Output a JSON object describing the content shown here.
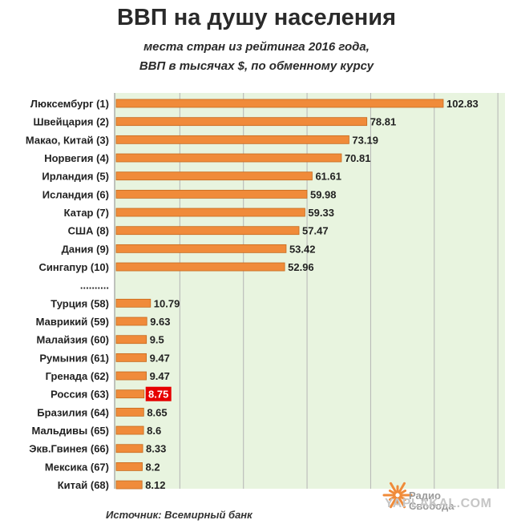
{
  "title": "ВВП на душу населения",
  "subtitle_line1": "места стран из рейтинга 2016 года,",
  "subtitle_line2": "ВВП в тысячах $, по обменному курсу",
  "source": "Источник: Всемирный банк",
  "logo_text_line1": "Радио",
  "logo_text_line2": "Свобода",
  "watermark": "YAPLAKAL.COM",
  "colors": {
    "bar": "#f08b3a",
    "bar_edge": "#c66a1e",
    "plot_bg": "#e8f4df",
    "grid": "#b5b5b5",
    "highlight": "#e60000",
    "logo": "#f08b3a"
  },
  "chart_data": {
    "type": "bar",
    "orientation": "horizontal",
    "categories": [
      "Люксембург (1)",
      "Швейцария (2)",
      "Макао, Китай (3)",
      "Норвегия (4)",
      "Ирландия (5)",
      "Исландия (6)",
      "Катар (7)",
      "США (8)",
      "Дания (9)",
      "Сингапур (10)",
      "..........",
      "Турция (58)",
      "Маврикий (59)",
      "Малайзия (60)",
      "Румыния (61)",
      "Гренада (62)",
      "Россия (63)",
      "Бразилия (64)",
      "Мальдивы (65)",
      "Экв.Гвинея (66)",
      "Мексика (67)",
      "Китай (68)"
    ],
    "values": [
      102.83,
      78.81,
      73.19,
      70.81,
      61.61,
      59.98,
      59.33,
      57.47,
      53.42,
      52.96,
      null,
      10.79,
      9.63,
      9.5,
      9.47,
      9.47,
      8.75,
      8.65,
      8.6,
      8.33,
      8.2,
      8.12
    ],
    "value_labels": [
      "102.83",
      "78.81",
      "73.19",
      "70.81",
      "61.61",
      "59.98",
      "59.33",
      "57.47",
      "53.42",
      "52.96",
      "",
      "10.79",
      "9.63",
      "9.5",
      "9.47",
      "9.47",
      "8.75",
      "8.65",
      "8.6",
      "8.33",
      "8.2",
      "8.12"
    ],
    "highlight_index": 16,
    "xlim": [
      0,
      120
    ],
    "gridline_step": 20,
    "grid": true,
    "legend": false
  }
}
